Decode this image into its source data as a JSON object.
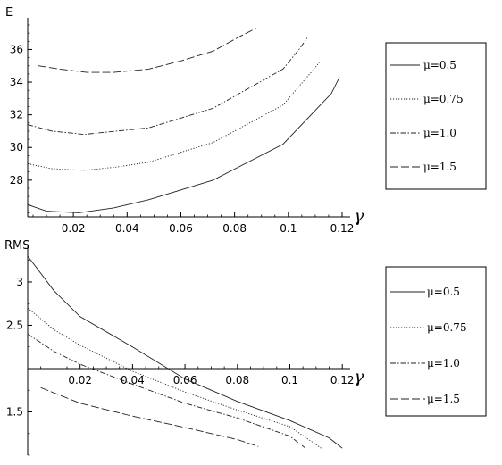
{
  "chart_data": [
    {
      "type": "line",
      "ylabel": "E",
      "xlabel": "γ",
      "xlim": [
        0.003,
        0.123
      ],
      "ylim": [
        25.75,
        37.5
      ],
      "x_ticks": [
        0.02,
        0.04,
        0.06,
        0.08,
        0.1,
        0.12
      ],
      "x_tick_labels": [
        "0.02",
        "0.04",
        "0.06",
        "0.08",
        "0.1",
        "0.12"
      ],
      "y_ticks": [
        28,
        30,
        32,
        34,
        36
      ],
      "y_tick_labels": [
        "28",
        "30",
        "32",
        "34",
        "36"
      ],
      "series": [
        {
          "name": "μ=0.5",
          "dash": "solid",
          "x": [
            0.003,
            0.01,
            0.022,
            0.035,
            0.048,
            0.072,
            0.098,
            0.116,
            0.119
          ],
          "y": [
            26.5,
            26.1,
            26.0,
            26.3,
            26.8,
            28.0,
            30.2,
            33.3,
            34.3
          ]
        },
        {
          "name": "μ=0.75",
          "dash": "dotted",
          "x": [
            0.003,
            0.012,
            0.024,
            0.036,
            0.048,
            0.072,
            0.098,
            0.109,
            0.112
          ],
          "y": [
            29.0,
            28.7,
            28.6,
            28.8,
            29.1,
            30.3,
            32.6,
            34.7,
            35.3
          ]
        },
        {
          "name": "μ=1.0",
          "dash": "dashdot",
          "x": [
            0.003,
            0.012,
            0.024,
            0.036,
            0.048,
            0.072,
            0.098,
            0.104,
            0.107
          ],
          "y": [
            31.4,
            31.0,
            30.8,
            31.0,
            31.2,
            32.4,
            34.8,
            36.0,
            36.7
          ]
        },
        {
          "name": "μ=1.5",
          "dash": "longdash",
          "x": [
            0.007,
            0.015,
            0.025,
            0.035,
            0.048,
            0.06,
            0.072,
            0.082,
            0.088
          ],
          "y": [
            35.0,
            34.8,
            34.6,
            34.6,
            34.8,
            35.3,
            35.9,
            36.8,
            37.3
          ]
        }
      ],
      "legend_position": "right"
    },
    {
      "type": "line",
      "ylabel": "RMS",
      "xlabel": "γ",
      "xlim": [
        0.0,
        0.123
      ],
      "ylim": [
        1.0,
        3.35
      ],
      "x_ticks": [
        0.02,
        0.04,
        0.06,
        0.08,
        0.1,
        0.12
      ],
      "x_tick_labels": [
        "0.02",
        "0.04",
        "0.06",
        "0.08",
        "0.1",
        "0.12"
      ],
      "y_ticks": [
        1.5,
        2.5,
        3
      ],
      "y_tick_labels": [
        "1.5",
        "2.5",
        "3"
      ],
      "x_axis_at_y": 2.0,
      "series": [
        {
          "name": "μ=0.5",
          "dash": "solid",
          "x": [
            0.0,
            0.01,
            0.02,
            0.04,
            0.06,
            0.08,
            0.1,
            0.115,
            0.12
          ],
          "y": [
            3.3,
            2.9,
            2.6,
            2.25,
            1.88,
            1.62,
            1.4,
            1.2,
            1.08
          ]
        },
        {
          "name": "μ=0.75",
          "dash": "dotted",
          "x": [
            0.0,
            0.01,
            0.02,
            0.04,
            0.06,
            0.08,
            0.1,
            0.112
          ],
          "y": [
            2.7,
            2.45,
            2.27,
            1.97,
            1.73,
            1.52,
            1.33,
            1.08
          ]
        },
        {
          "name": "μ=1.0",
          "dash": "dashdot",
          "x": [
            0.0,
            0.01,
            0.02,
            0.04,
            0.06,
            0.08,
            0.1,
            0.106
          ],
          "y": [
            2.4,
            2.2,
            2.05,
            1.82,
            1.6,
            1.43,
            1.22,
            1.08
          ]
        },
        {
          "name": "μ=1.5",
          "dash": "longdash",
          "x": [
            0.005,
            0.02,
            0.04,
            0.06,
            0.08,
            0.088
          ],
          "y": [
            1.78,
            1.6,
            1.45,
            1.32,
            1.18,
            1.1
          ]
        }
      ],
      "legend_position": "right"
    }
  ]
}
